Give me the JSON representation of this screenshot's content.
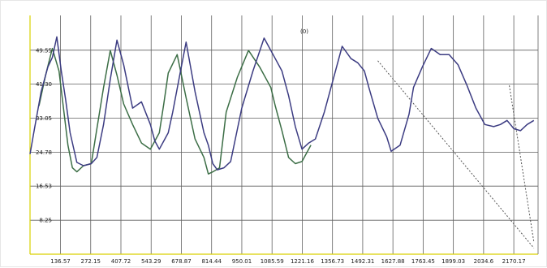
{
  "chart_data": {
    "type": "line",
    "title": "(0)",
    "x_ticks": [
      "136.57",
      "272.15",
      "407.72",
      "543.29",
      "678.87",
      "814.44",
      "950.01",
      "1085.59",
      "1221.16",
      "1356.73",
      "1492.31",
      "1627.88",
      "1763.45",
      "1899.03",
      "2034.6",
      "2170.17"
    ],
    "y_ticks": [
      "8.25",
      "16.53",
      "24.78",
      "33.05",
      "41.30",
      "49.55"
    ],
    "xlim": [
      0,
      2279
    ],
    "ylim": [
      0,
      58
    ],
    "grid": true,
    "colors": {
      "series_a": "#3c3c82",
      "series_b": "#3c6e46",
      "overlay": "#555555",
      "axis_left": "#d9d100",
      "axis_bottom": "#d9d100",
      "grid": "#606060"
    },
    "series": [
      {
        "x": [
          0,
          20,
          50,
          80,
          100,
          120,
          140,
          160,
          180,
          210,
          240,
          275,
          300,
          330,
          360,
          390,
          420,
          460,
          500,
          540,
          560,
          580,
          600,
          620,
          640,
          670,
          700,
          740,
          780,
          800,
          820,
          840,
          870,
          900,
          950,
          1000,
          1050,
          1100,
          1130,
          1160,
          1190,
          1220,
          1250,
          1280,
          1320,
          1360,
          1400,
          1440,
          1470,
          1500,
          1520,
          1560,
          1600,
          1620,
          1660,
          1700,
          1720,
          1760,
          1800,
          1840,
          1880,
          1920,
          1960,
          2000,
          2040,
          2080,
          2110,
          2140,
          2170,
          2200,
          2230,
          2260
        ],
        "y": [
          24.3,
          30.5,
          39.5,
          45.5,
          47.8,
          52.8,
          44.5,
          37.5,
          29.5,
          22.3,
          21.5,
          22.0,
          23.5,
          31.5,
          42.5,
          52.0,
          46.0,
          35.5,
          37.0,
          31.5,
          27.5,
          25.5,
          27.5,
          29.5,
          34.5,
          43.0,
          51.5,
          39.5,
          29.5,
          26.5,
          22.0,
          20.5,
          21.0,
          22.5,
          35.5,
          44.5,
          52.5,
          47.5,
          44.5,
          38.5,
          31.0,
          25.5,
          27.0,
          28.0,
          34.5,
          42.5,
          50.5,
          47.5,
          46.5,
          44.5,
          40.5,
          33.0,
          28.5,
          25.0,
          26.5,
          34.0,
          40.5,
          45.5,
          50.0,
          48.5,
          48.5,
          46.0,
          41.0,
          35.5,
          31.5,
          31.0,
          31.5,
          32.5,
          30.5,
          30.0,
          31.5,
          32.5
        ]
      },
      {
        "x": [
          40,
          70,
          100,
          130,
          150,
          170,
          190,
          210,
          240,
          275,
          300,
          330,
          360,
          390,
          420,
          460,
          500,
          540,
          560,
          580,
          600,
          620,
          660,
          700,
          740,
          780,
          800,
          820,
          850,
          880,
          930,
          980,
          1030,
          1080,
          1100,
          1130,
          1160,
          1190,
          1220,
          1260
        ],
        "y": [
          36.0,
          43.5,
          50.0,
          44.5,
          35.5,
          26.5,
          21.0,
          20.0,
          21.5,
          22.0,
          30.5,
          40.5,
          49.5,
          43.5,
          36.5,
          31.5,
          27.0,
          25.5,
          27.5,
          29.5,
          36.5,
          44.0,
          48.5,
          38.0,
          28.0,
          23.5,
          19.5,
          20.0,
          21.0,
          34.5,
          43.0,
          49.5,
          45.5,
          40.5,
          36.0,
          30.0,
          23.5,
          22.0,
          22.5,
          26.5
        ]
      }
    ],
    "overlay_dashed": [
      {
        "x": [
          1560,
          2260
        ],
        "y": [
          47.0,
          1.5
        ]
      },
      {
        "x": [
          2150,
          2260
        ],
        "y": [
          41.0,
          3.0
        ]
      }
    ]
  }
}
